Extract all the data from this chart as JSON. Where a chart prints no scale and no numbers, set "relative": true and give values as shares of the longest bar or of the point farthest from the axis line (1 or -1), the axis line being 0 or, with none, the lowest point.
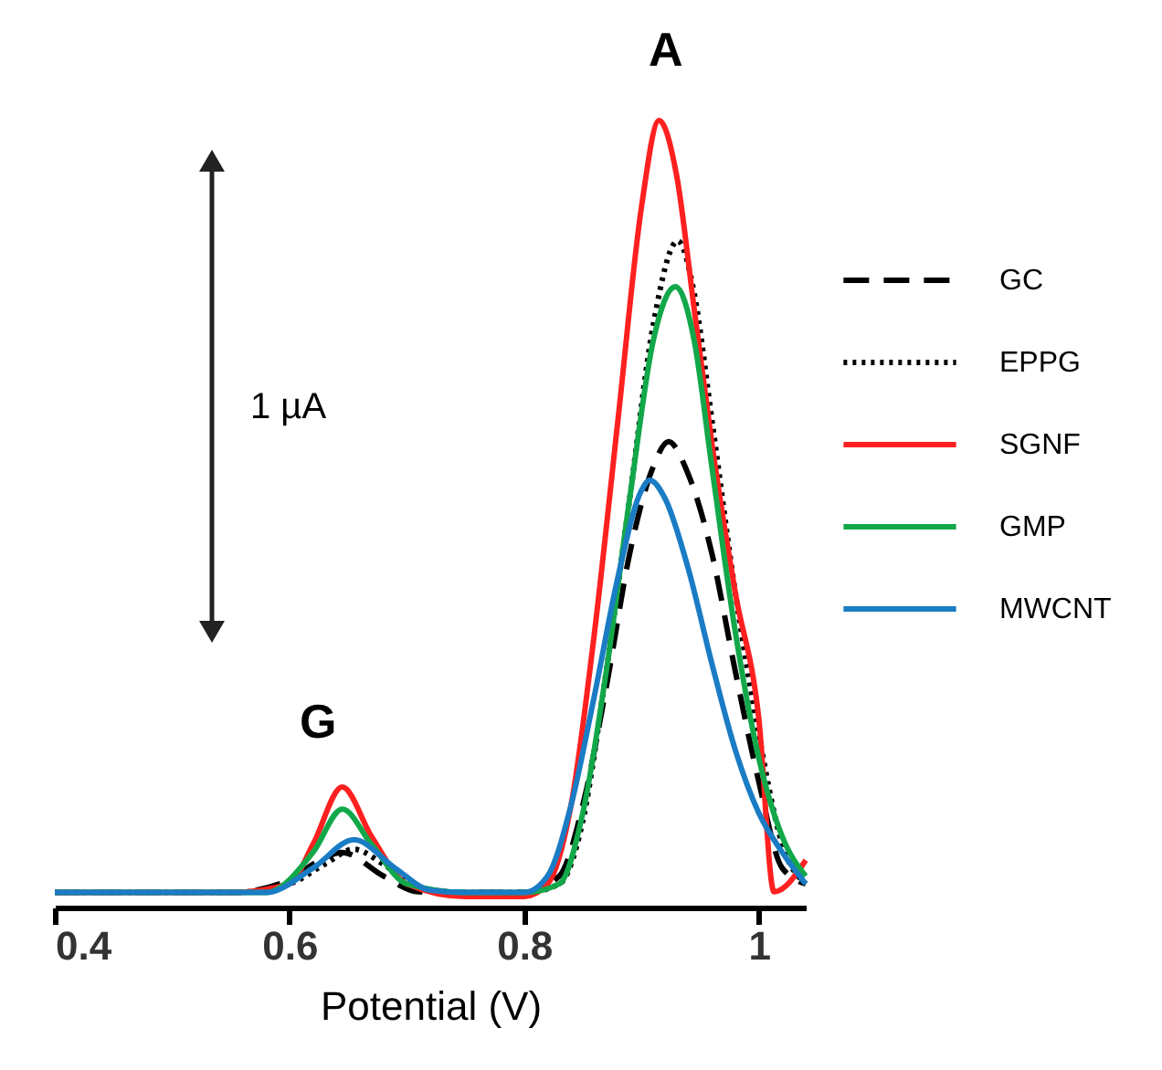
{
  "chart_data": {
    "type": "line",
    "relative": true,
    "xlabel": "Potential (V)",
    "xlim": [
      0.4,
      1.04
    ],
    "xticks": [
      0.4,
      0.6,
      0.8,
      1
    ],
    "grid": false,
    "legend": "top right",
    "marker": "none",
    "annotations": [
      "A",
      "G",
      "1 µA"
    ],
    "series": [
      {
        "name": "GC",
        "color": "#000000",
        "line_style": "dashed",
        "x": [
          0.4,
          0.55,
          0.6,
          0.62,
          0.645,
          0.68,
          0.71,
          0.75,
          0.8,
          0.83,
          0.85,
          0.87,
          0.89,
          0.91,
          0.923,
          0.94,
          0.96,
          0.98,
          1.0,
          1.02,
          1.04
        ],
        "values": [
          0.019,
          0.019,
          0.035,
          0.055,
          0.07,
          0.04,
          0.02,
          0.019,
          0.019,
          0.04,
          0.13,
          0.28,
          0.45,
          0.56,
          0.592,
          0.55,
          0.45,
          0.3,
          0.16,
          0.05,
          0.03
        ]
      },
      {
        "name": "EPPG",
        "color": "#000000",
        "line_style": "dotted",
        "x": [
          0.4,
          0.55,
          0.6,
          0.63,
          0.655,
          0.68,
          0.71,
          0.75,
          0.8,
          0.83,
          0.85,
          0.87,
          0.89,
          0.91,
          0.931,
          0.945,
          0.96,
          0.98,
          1.0,
          1.02,
          1.04
        ],
        "values": [
          0.019,
          0.019,
          0.03,
          0.055,
          0.074,
          0.055,
          0.025,
          0.019,
          0.019,
          0.03,
          0.11,
          0.3,
          0.52,
          0.74,
          0.847,
          0.78,
          0.62,
          0.4,
          0.22,
          0.08,
          0.03
        ]
      },
      {
        "name": "SGNF",
        "color": "#ff2020",
        "line_style": "solid",
        "x": [
          0.4,
          0.55,
          0.6,
          0.62,
          0.645,
          0.67,
          0.7,
          0.75,
          0.8,
          0.82,
          0.84,
          0.86,
          0.88,
          0.9,
          0.915,
          0.93,
          0.945,
          0.96,
          0.98,
          1.0,
          1.013,
          1.04
        ],
        "values": [
          0.019,
          0.019,
          0.03,
          0.08,
          0.153,
          0.09,
          0.03,
          0.014,
          0.014,
          0.03,
          0.13,
          0.35,
          0.62,
          0.89,
          1.0,
          0.93,
          0.76,
          0.59,
          0.4,
          0.24,
          0.02,
          0.06
        ]
      },
      {
        "name": "GMP",
        "color": "#12a84a",
        "line_style": "solid",
        "x": [
          0.4,
          0.58,
          0.62,
          0.645,
          0.67,
          0.7,
          0.75,
          0.8,
          0.83,
          0.85,
          0.87,
          0.89,
          0.91,
          0.929,
          0.945,
          0.96,
          0.98,
          1.0,
          1.02,
          1.04
        ],
        "values": [
          0.019,
          0.019,
          0.07,
          0.125,
          0.08,
          0.03,
          0.019,
          0.019,
          0.03,
          0.12,
          0.3,
          0.52,
          0.72,
          0.789,
          0.72,
          0.56,
          0.35,
          0.19,
          0.09,
          0.04
        ]
      },
      {
        "name": "MWCNT",
        "color": "#1a7cc4",
        "line_style": "solid",
        "x": [
          0.4,
          0.58,
          0.62,
          0.655,
          0.69,
          0.72,
          0.75,
          0.8,
          0.82,
          0.84,
          0.86,
          0.88,
          0.9,
          0.907,
          0.92,
          0.94,
          0.96,
          0.98,
          1.0,
          1.02,
          1.04
        ],
        "values": [
          0.019,
          0.019,
          0.05,
          0.086,
          0.05,
          0.022,
          0.019,
          0.019,
          0.04,
          0.13,
          0.27,
          0.42,
          0.53,
          0.543,
          0.52,
          0.43,
          0.31,
          0.2,
          0.12,
          0.07,
          0.03
        ]
      }
    ]
  }
}
